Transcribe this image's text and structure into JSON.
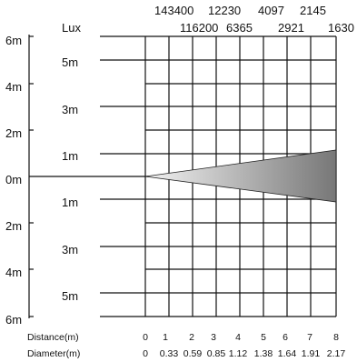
{
  "lux_header": "Lux",
  "lux_top": [
    "143400",
    "12230",
    "4097",
    "2145"
  ],
  "lux_bottom": [
    "116200",
    "6365",
    "2921",
    "1630"
  ],
  "left_axis_labels": [
    "6m",
    "4m",
    "2m",
    "0m",
    "2m",
    "4m",
    "6m"
  ],
  "inner_labels": [
    "5m",
    "3m",
    "1m",
    "1m",
    "3m",
    "5m"
  ],
  "distance_label": "Distance(m)",
  "distance_values": [
    "0",
    "1",
    "2",
    "3",
    "4",
    "5",
    "6",
    "7",
    "8"
  ],
  "diameter_label": "Diameter(m)",
  "diameter_values": [
    "0",
    "0.33",
    "0.59",
    "0.85",
    "1.12",
    "1.38",
    "1.64",
    "1.91",
    "2.17"
  ],
  "beam_gradient": [
    "#f2f2f2",
    "#777777"
  ]
}
